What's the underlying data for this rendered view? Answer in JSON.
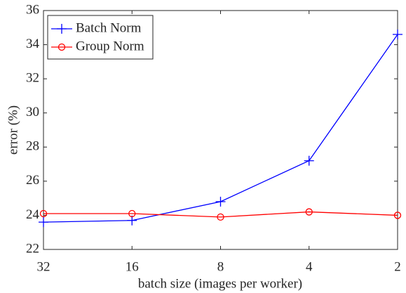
{
  "chart_data": {
    "type": "line",
    "x_label": "batch size (images per worker)",
    "y_label": "error (%)",
    "categories": [
      "32",
      "16",
      "8",
      "4",
      "2"
    ],
    "series": [
      {
        "name": "Batch Norm",
        "color": "#0000ff",
        "marker": "plus",
        "values": [
          23.6,
          23.7,
          24.8,
          27.2,
          34.6
        ]
      },
      {
        "name": "Group Norm",
        "color": "#ff0000",
        "marker": "circle",
        "values": [
          24.1,
          24.1,
          23.9,
          24.2,
          24.0
        ]
      }
    ],
    "ylim": [
      22,
      36
    ],
    "yticks": [
      22,
      24,
      26,
      28,
      30,
      32,
      34,
      36
    ],
    "grid": false,
    "legend": "top-left"
  }
}
